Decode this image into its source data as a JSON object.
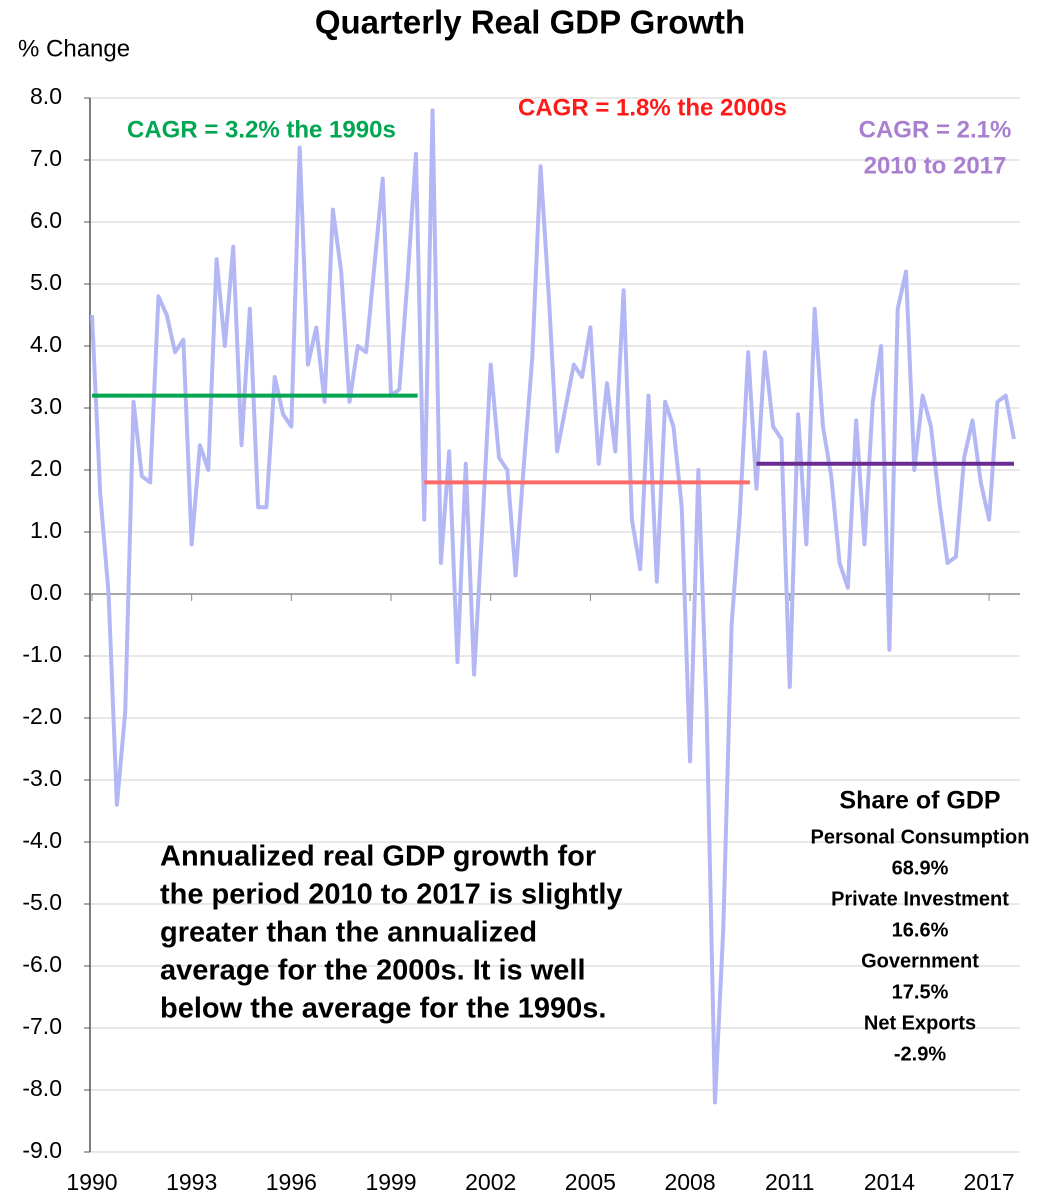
{
  "chart_data": {
    "type": "line",
    "title": "Quarterly Real GDP Growth",
    "y_label": "% Change",
    "x": [
      1990,
      1990.25,
      1990.5,
      1990.75,
      1991,
      1991.25,
      1991.5,
      1991.75,
      1992,
      1992.25,
      1992.5,
      1992.75,
      1993,
      1993.25,
      1993.5,
      1993.75,
      1994,
      1994.25,
      1994.5,
      1994.75,
      1995,
      1995.25,
      1995.5,
      1995.75,
      1996,
      1996.25,
      1996.5,
      1996.75,
      1997,
      1997.25,
      1997.5,
      1997.75,
      1998,
      1998.25,
      1998.5,
      1998.75,
      1999,
      1999.25,
      1999.5,
      1999.75,
      2000,
      2000.25,
      2000.5,
      2000.75,
      2001,
      2001.25,
      2001.5,
      2001.75,
      2002,
      2002.25,
      2002.5,
      2002.75,
      2003,
      2003.25,
      2003.5,
      2003.75,
      2004,
      2004.25,
      2004.5,
      2004.75,
      2005,
      2005.25,
      2005.5,
      2005.75,
      2006,
      2006.25,
      2006.5,
      2006.75,
      2007,
      2007.25,
      2007.5,
      2007.75,
      2008,
      2008.25,
      2008.5,
      2008.75,
      2009,
      2009.25,
      2009.5,
      2009.75,
      2010,
      2010.25,
      2010.5,
      2010.75,
      2011,
      2011.25,
      2011.5,
      2011.75,
      2012,
      2012.25,
      2012.5,
      2012.75,
      2013,
      2013.25,
      2013.5,
      2013.75,
      2014,
      2014.25,
      2014.5,
      2014.75,
      2015,
      2015.25,
      2015.5,
      2015.75,
      2016,
      2016.25,
      2016.5,
      2016.75,
      2017,
      2017.25,
      2017.5,
      2017.75
    ],
    "series": [
      {
        "name": "Real GDP growth",
        "color": "#b3b8f5",
        "values": [
          4.5,
          1.6,
          0.0,
          -3.4,
          -1.9,
          3.1,
          1.9,
          1.8,
          4.8,
          4.5,
          3.9,
          4.1,
          0.8,
          2.4,
          2.0,
          5.4,
          4.0,
          5.6,
          2.4,
          4.6,
          1.4,
          1.4,
          3.5,
          2.9,
          2.7,
          7.2,
          3.7,
          4.3,
          3.1,
          6.2,
          5.2,
          3.1,
          4.0,
          3.9,
          5.3,
          6.7,
          3.2,
          3.3,
          5.1,
          7.1,
          1.2,
          7.8,
          0.5,
          2.3,
          -1.1,
          2.1,
          -1.3,
          1.1,
          3.7,
          2.2,
          2.0,
          0.3,
          2.1,
          3.8,
          6.9,
          4.8,
          2.3,
          3.0,
          3.7,
          3.5,
          4.3,
          2.1,
          3.4,
          2.3,
          4.9,
          1.2,
          0.4,
          3.2,
          0.2,
          3.1,
          2.7,
          1.4,
          -2.7,
          2.0,
          -1.9,
          -8.2,
          -5.4,
          -0.5,
          1.3,
          3.9,
          1.7,
          3.9,
          2.7,
          2.5,
          -1.5,
          2.9,
          0.8,
          4.6,
          2.7,
          1.9,
          0.5,
          0.1,
          2.8,
          0.8,
          3.1,
          4.0,
          -0.9,
          4.6,
          5.2,
          2.0,
          3.2,
          2.7,
          1.5,
          0.5,
          0.6,
          2.2,
          2.8,
          1.8,
          1.2,
          3.1,
          3.2,
          2.5
        ]
      }
    ],
    "reference_lines": [
      {
        "value": 3.2,
        "x": [
          1990,
          1999.8
        ],
        "color": "#00a651"
      },
      {
        "value": 1.8,
        "x": [
          2000,
          2009.8
        ],
        "color": "#ff6b6b"
      },
      {
        "value": 2.1,
        "x": [
          2010,
          2017.75
        ],
        "color": "#6a2c91"
      }
    ],
    "annotations": [
      {
        "lines": [
          "CAGR = 3.2% the 1990s"
        ],
        "color": "#00a651"
      },
      {
        "lines": [
          "CAGR = 1.8% the 2000s"
        ],
        "color": "#ff1a1a"
      },
      {
        "lines": [
          "CAGR = 2.1%",
          "2010 to 2017"
        ],
        "color": "#a97fd0"
      },
      {
        "lines": [
          "Annualized real GDP growth for",
          "the period 2010 to 2017 is slightly",
          "greater than the annualized",
          "average for the 2000s. It is well",
          "below the average for the 1990s."
        ],
        "color": "#000000"
      },
      {
        "lines": [
          "Share of GDP",
          "Personal Consumption",
          "68.9%",
          "Private Investment",
          "16.6%",
          "Government",
          "17.5%",
          "Net Exports",
          "-2.9%"
        ],
        "color": "#000000"
      }
    ],
    "xlim": [
      1990,
      2017.75
    ],
    "xticks": [
      1990,
      1993,
      1996,
      1999,
      2002,
      2005,
      2008,
      2011,
      2014,
      2017
    ],
    "ylim": [
      -9,
      8
    ],
    "yticks": [
      {
        "value": 8,
        "label": "8.0"
      },
      {
        "value": 7,
        "label": "7.0"
      },
      {
        "value": 6,
        "label": "6.0"
      },
      {
        "value": 5,
        "label": "5.0"
      },
      {
        "value": 4,
        "label": "4.0"
      },
      {
        "value": 3,
        "label": "3.0"
      },
      {
        "value": 2,
        "label": "2.0"
      },
      {
        "value": 1,
        "label": "1.0"
      },
      {
        "value": 0,
        "label": "0.0"
      },
      {
        "value": -1,
        "label": "-1.0"
      },
      {
        "value": -2,
        "label": "-2.0"
      },
      {
        "value": -3,
        "label": "-3.0"
      },
      {
        "value": -4,
        "label": "-4.0"
      },
      {
        "value": -5,
        "label": "-5.0"
      },
      {
        "value": -6,
        "label": "-6.0"
      },
      {
        "value": -7,
        "label": "-7.0"
      },
      {
        "value": -8,
        "label": "-8.0"
      },
      {
        "value": -9,
        "label": "-9.0"
      }
    ],
    "grid": true
  }
}
